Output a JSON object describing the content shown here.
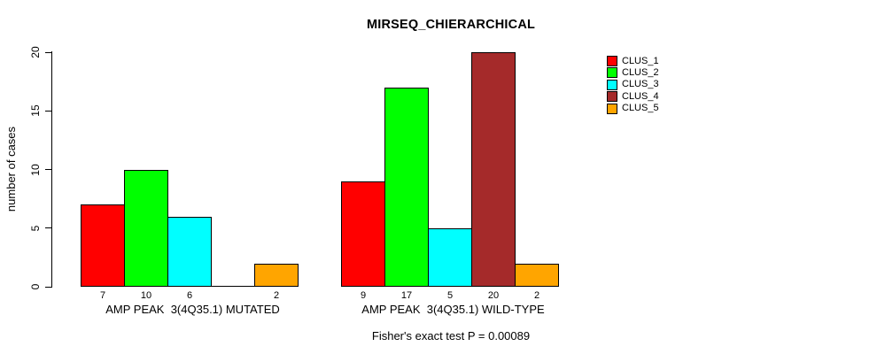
{
  "chart": {
    "title": "MIRSEQ_CHIERARCHICAL",
    "y_axis_label": "number of cases",
    "annotation": "Fisher's exact test P = 0.00089"
  },
  "chart_data": {
    "type": "bar",
    "title": "MIRSEQ_CHIERARCHICAL",
    "xlabel": "",
    "ylabel": "number of cases",
    "ylim": [
      0,
      20
    ],
    "yticks": [
      0,
      5,
      10,
      15,
      20
    ],
    "grid": false,
    "legend_position": "top-right",
    "categories": [
      "AMP PEAK  3(4Q35.1) MUTATED",
      "AMP PEAK  3(4Q35.1) WILD-TYPE"
    ],
    "series": [
      {
        "name": "CLUS_1",
        "color": "#FF0000",
        "values": [
          7,
          9
        ]
      },
      {
        "name": "CLUS_2",
        "color": "#00FF00",
        "values": [
          10,
          17
        ]
      },
      {
        "name": "CLUS_3",
        "color": "#00FFFF",
        "values": [
          6,
          5
        ]
      },
      {
        "name": "CLUS_4",
        "color": "#A52A2A",
        "values": [
          0,
          20
        ]
      },
      {
        "name": "CLUS_5",
        "color": "#FFA500",
        "values": [
          2,
          2
        ]
      }
    ],
    "bar_value_labels_shown": true,
    "zero_bars_have_no_label": true,
    "annotation": "Fisher's exact test P = 0.00089"
  },
  "colors": {
    "background": "#FFFFFF",
    "axis": "#000000",
    "bar_border": "#000000",
    "text": "#000000"
  }
}
